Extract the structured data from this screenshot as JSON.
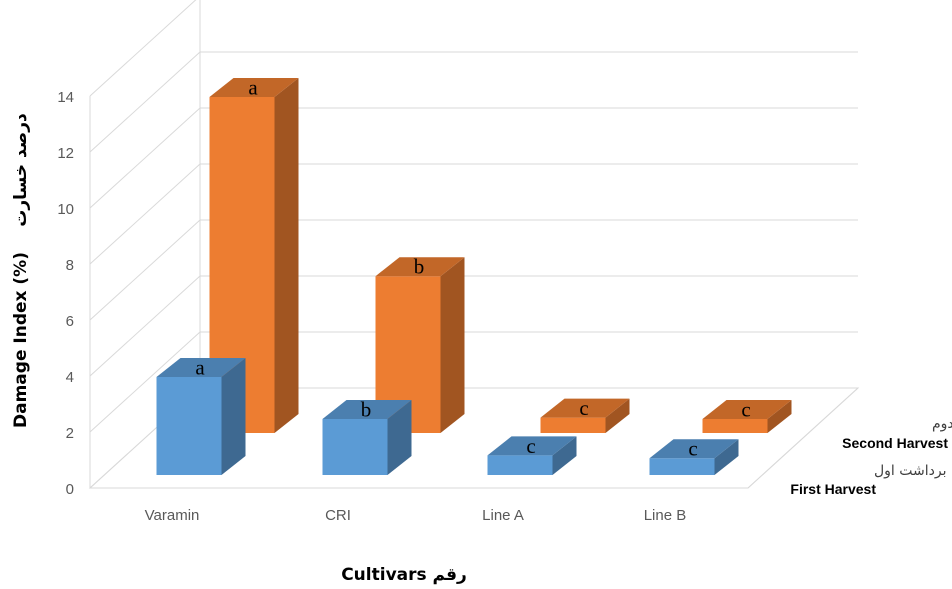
{
  "chart_data": {
    "type": "bar",
    "style": "3d-column",
    "xlabel": "Cultivars رقم",
    "ylabel": "Damage Index (%)",
    "ylabel_fa": "درصد خسارت",
    "ylim": [
      0,
      14
    ],
    "yticks": [
      "0",
      "2",
      "4",
      "6",
      "8",
      "10",
      "12",
      "14"
    ],
    "grid": true,
    "categories": [
      "Varamin",
      "CRI",
      "Line A",
      "Line B"
    ],
    "series": [
      {
        "name": "First Harvest",
        "name_fa": "برداشت اول",
        "color": "#5B9BD5",
        "values": [
          3.5,
          2.0,
          0.7,
          0.6
        ],
        "letters": [
          "a",
          "b",
          "c",
          "c"
        ]
      },
      {
        "name": "Second Harvest",
        "name_fa": "برداشت دوم",
        "color": "#ED7D31",
        "values": [
          12.0,
          5.6,
          0.55,
          0.5
        ],
        "letters": [
          "a",
          "b",
          "c",
          "c"
        ]
      }
    ]
  }
}
